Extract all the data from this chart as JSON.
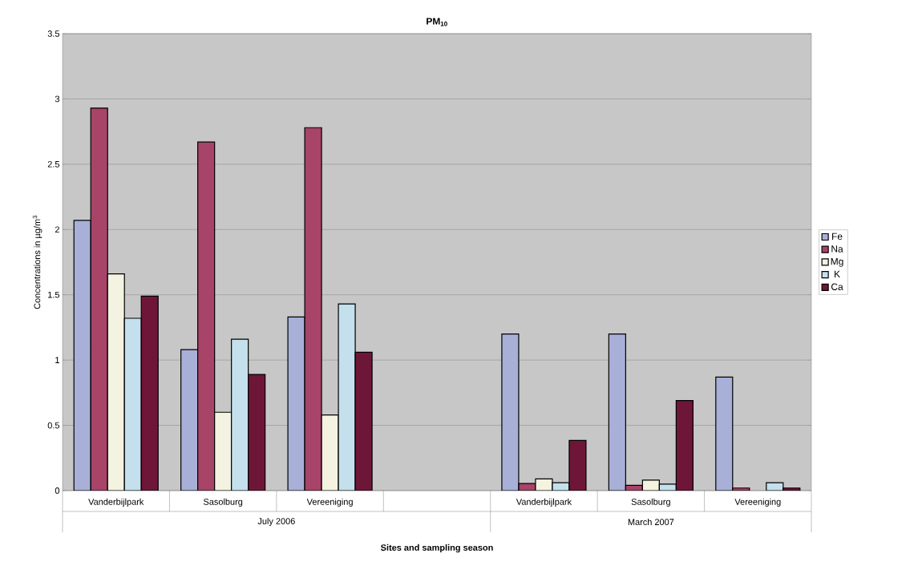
{
  "chart_data": {
    "type": "bar",
    "title": "PM$_{10}$",
    "xlabel": "Sites and sampling season",
    "ylabel": "Concentrations in µg/m$^{3}$",
    "categories": [
      "Vanderbijlpark",
      "Sasolburg",
      "Vereeniging",
      null,
      "Vanderbijlpark",
      "Sasolburg",
      "Vereeniging"
    ],
    "annotations": [
      "July 2006",
      "March 2007"
    ],
    "series": [
      {
        "name": "Fe",
        "color": "#a8b0d8",
        "values": [
          2.07,
          1.08,
          1.33,
          null,
          1.2,
          1.2,
          0.87
        ]
      },
      {
        "name": "Na",
        "color": "#a84468",
        "values": [
          2.93,
          2.67,
          2.78,
          null,
          0.055,
          0.04,
          0.02
        ]
      },
      {
        "name": "Mg",
        "color": "#f4f2e0",
        "values": [
          1.66,
          0.6,
          0.58,
          null,
          0.09,
          0.08,
          null
        ]
      },
      {
        "name": "K",
        "color": "#c4e0ec",
        "values": [
          1.32,
          1.16,
          1.43,
          null,
          0.06,
          0.05,
          0.06
        ]
      },
      {
        "name": "Ca",
        "color": "#6e1638",
        "values": [
          1.49,
          0.89,
          1.06,
          null,
          0.385,
          0.69,
          0.02
        ]
      }
    ],
    "ylim": [
      0,
      3.5
    ],
    "yticks": [
      0,
      0.5,
      1,
      1.5,
      2,
      2.5,
      3,
      3.5
    ],
    "grid": "y",
    "legend": "right"
  }
}
